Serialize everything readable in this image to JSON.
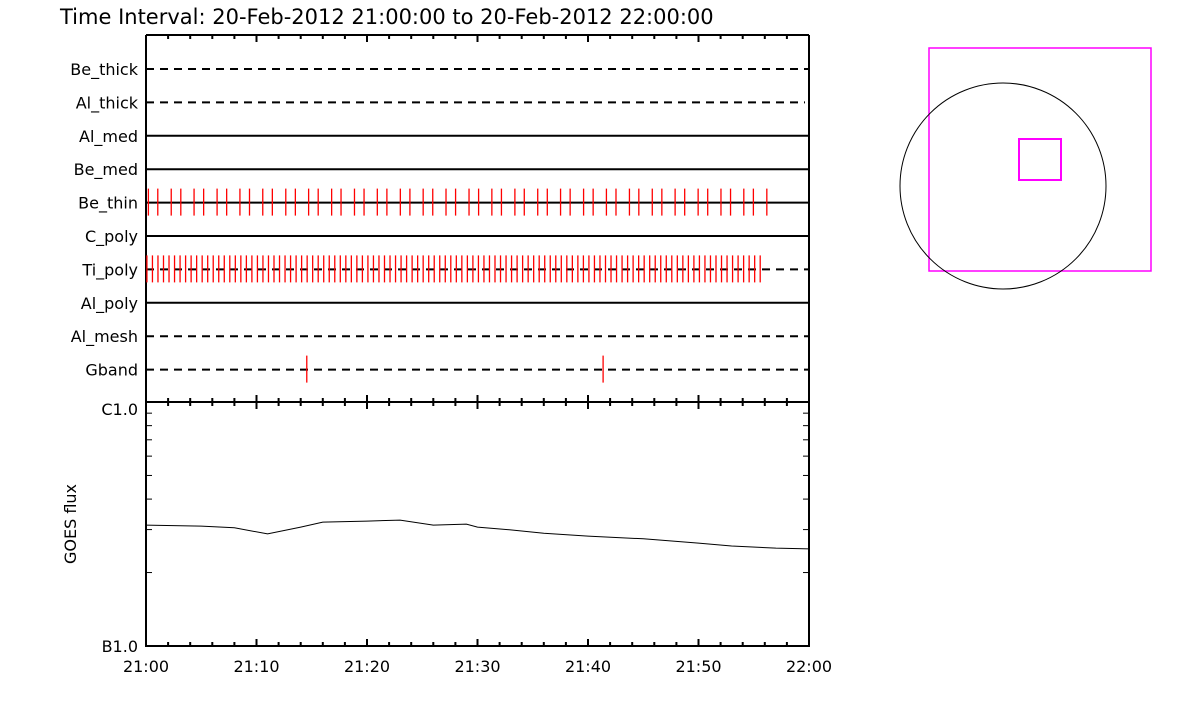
{
  "title": "Time Interval: 20-Feb-2012 21:00:00 to 20-Feb-2012 22:00:00",
  "colors": {
    "tick": "#ff0000",
    "fov": "#ff00ff",
    "axis": "#000000"
  },
  "chart_data": [
    {
      "type": "timeline",
      "xlim": [
        "21:00:00",
        "22:00:00"
      ],
      "rows": [
        {
          "name": "Be_thick",
          "line": "dashed",
          "times": []
        },
        {
          "name": "Al_thick",
          "line": "dashed",
          "times": []
        },
        {
          "name": "Al_med",
          "line": "solid",
          "times": []
        },
        {
          "name": "Be_med",
          "line": "solid",
          "times": []
        },
        {
          "name": "Be_thin",
          "line": "solid",
          "times": [
            "21:00:13",
            "21:01:04",
            "21:02:17",
            "21:03:09",
            "21:04:21",
            "21:05:13",
            "21:06:26",
            "21:07:18",
            "21:08:30",
            "21:09:22",
            "21:10:34",
            "21:11:26",
            "21:12:39",
            "21:13:31",
            "21:14:43",
            "21:15:35",
            "21:16:48",
            "21:17:39",
            "21:18:52",
            "21:19:44",
            "21:20:56",
            "21:21:48",
            "21:23:01",
            "21:23:53",
            "21:25:05",
            "21:25:57",
            "21:27:09",
            "21:28:01",
            "21:29:14",
            "21:30:06",
            "21:31:18",
            "21:32:10",
            "21:33:23",
            "21:34:14",
            "21:35:27",
            "21:36:19",
            "21:37:31",
            "21:38:23",
            "21:39:36",
            "21:40:28",
            "21:41:40",
            "21:42:32",
            "21:43:45",
            "21:44:36",
            "21:45:49",
            "21:46:41",
            "21:47:53",
            "21:48:45",
            "21:49:58",
            "21:50:50",
            "21:52:02",
            "21:52:54",
            "21:54:06",
            "21:54:58",
            "21:56:11"
          ]
        },
        {
          "name": "C_poly",
          "line": "solid",
          "times": []
        },
        {
          "name": "Ti_poly",
          "line": "dashed",
          "times": [
            "21:00:05",
            "21:00:35",
            "21:01:05",
            "21:01:35",
            "21:02:05",
            "21:02:35",
            "21:03:05",
            "21:03:35",
            "21:04:05",
            "21:04:35",
            "21:05:05",
            "21:05:35",
            "21:06:05",
            "21:06:35",
            "21:07:05",
            "21:07:35",
            "21:08:05",
            "21:08:35",
            "21:09:05",
            "21:09:35",
            "21:10:05",
            "21:10:35",
            "21:11:05",
            "21:11:35",
            "21:12:05",
            "21:12:35",
            "21:13:05",
            "21:13:35",
            "21:14:05",
            "21:14:35",
            "21:15:05",
            "21:15:35",
            "21:16:05",
            "21:16:35",
            "21:17:05",
            "21:17:35",
            "21:18:05",
            "21:18:35",
            "21:19:05",
            "21:19:35",
            "21:20:05",
            "21:20:35",
            "21:21:05",
            "21:21:35",
            "21:22:05",
            "21:22:35",
            "21:23:05",
            "21:23:35",
            "21:24:05",
            "21:24:35",
            "21:25:05",
            "21:25:35",
            "21:26:05",
            "21:26:35",
            "21:27:05",
            "21:27:35",
            "21:28:05",
            "21:28:35",
            "21:29:05",
            "21:29:35",
            "21:30:05",
            "21:30:35",
            "21:31:05",
            "21:31:35",
            "21:32:05",
            "21:32:35",
            "21:33:05",
            "21:33:35",
            "21:34:05",
            "21:34:35",
            "21:35:05",
            "21:35:35",
            "21:36:05",
            "21:36:35",
            "21:37:05",
            "21:37:35",
            "21:38:05",
            "21:38:35",
            "21:39:05",
            "21:39:35",
            "21:40:05",
            "21:40:35",
            "21:41:05",
            "21:41:35",
            "21:42:05",
            "21:42:35",
            "21:43:05",
            "21:43:35",
            "21:44:05",
            "21:44:35",
            "21:45:05",
            "21:45:35",
            "21:46:05",
            "21:46:35",
            "21:47:05",
            "21:47:35",
            "21:48:05",
            "21:48:35",
            "21:49:05",
            "21:49:35",
            "21:50:05",
            "21:50:35",
            "21:51:05",
            "21:51:35",
            "21:52:05",
            "21:52:35",
            "21:53:05",
            "21:53:35",
            "21:54:05",
            "21:54:35",
            "21:55:05",
            "21:55:35"
          ]
        },
        {
          "name": "Al_poly",
          "line": "solid",
          "times": []
        },
        {
          "name": "Al_mesh",
          "line": "dashed",
          "times": []
        },
        {
          "name": "Gband",
          "line": "dashed",
          "times": [
            "21:14:33",
            "21:41:22"
          ]
        }
      ]
    },
    {
      "type": "line",
      "ylabel": "GOES flux",
      "yscale": "log",
      "ylim": [
        1e-07,
        1e-06
      ],
      "ytick_labels": [
        "B1.0",
        "C1.0"
      ],
      "xtick_labels": [
        "21:00",
        "21:10",
        "21:20",
        "21:30",
        "21:40",
        "21:50",
        "22:00"
      ],
      "xlim": [
        "21:00",
        "22:00"
      ],
      "series": [
        {
          "x": [
            "21:00",
            "21:05",
            "21:08",
            "21:11",
            "21:14",
            "21:16",
            "21:20",
            "21:23",
            "21:26",
            "21:29",
            "21:30",
            "21:33",
            "21:36",
            "21:40",
            "21:45",
            "21:50",
            "21:53",
            "21:57",
            "22:00"
          ],
          "y": [
            3.13e-07,
            3.1e-07,
            3.05e-07,
            2.88e-07,
            3.07e-07,
            3.22e-07,
            3.25e-07,
            3.28e-07,
            3.13e-07,
            3.16e-07,
            3.07e-07,
            2.99e-07,
            2.9e-07,
            2.82e-07,
            2.75e-07,
            2.64e-07,
            2.57e-07,
            2.52e-07,
            2.5e-07
          ]
        }
      ]
    }
  ]
}
